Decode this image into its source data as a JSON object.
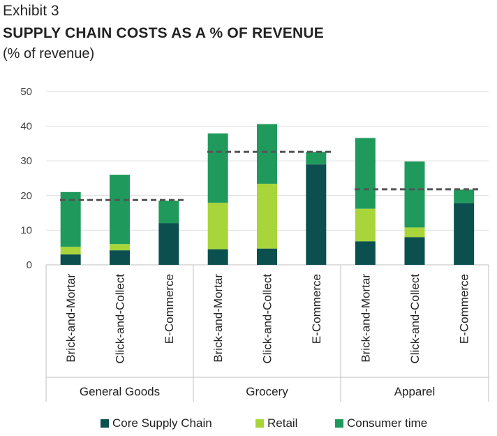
{
  "header": {
    "exhibit": "Exhibit 3",
    "title": "SUPPLY CHAIN COSTS AS A % OF REVENUE",
    "subtitle": "(% of revenue)"
  },
  "colors": {
    "core": "#0b4f4f",
    "retail": "#a8d63a",
    "consumer": "#1f9a5c",
    "average_line": "#555555",
    "grid": "#d9d9d9"
  },
  "chart_data": {
    "type": "bar",
    "stacked": true,
    "title": "SUPPLY CHAIN COSTS AS A % OF REVENUE",
    "ylabel": "% of revenue",
    "ylim": [
      0,
      50
    ],
    "yticks": [
      0,
      10,
      20,
      30,
      40,
      50
    ],
    "groups": [
      {
        "name": "General Goods",
        "categories": [
          "Brick-and-Mortar",
          "Click-and-Collect",
          "E-Commerce"
        ],
        "average": 18.7
      },
      {
        "name": "Grocery",
        "categories": [
          "Brick-and-Mortar",
          "Click-and-Collect",
          "E-Commerce"
        ],
        "average": 32.6
      },
      {
        "name": "Apparel",
        "categories": [
          "Brick-and-Mortar",
          "Click-and-Collect",
          "E-Commerce"
        ],
        "average": 21.8
      }
    ],
    "series": [
      {
        "name": "Core Supply Chain",
        "color_key": "core",
        "values": [
          3,
          4.2,
          12,
          4.5,
          4.7,
          29,
          6.8,
          8,
          17.8
        ]
      },
      {
        "name": "Retail",
        "color_key": "retail",
        "values": [
          2.2,
          1.8,
          0,
          13.4,
          18.7,
          0,
          9.4,
          2.8,
          0
        ]
      },
      {
        "name": "Consumer time",
        "color_key": "consumer",
        "values": [
          15.8,
          20,
          6.5,
          20,
          17.2,
          3.6,
          20.4,
          19,
          3.9
        ]
      }
    ],
    "legend": [
      "Core Supply Chain",
      "Retail",
      "Consumer time"
    ],
    "legend_position": "bottom",
    "grid": true
  }
}
